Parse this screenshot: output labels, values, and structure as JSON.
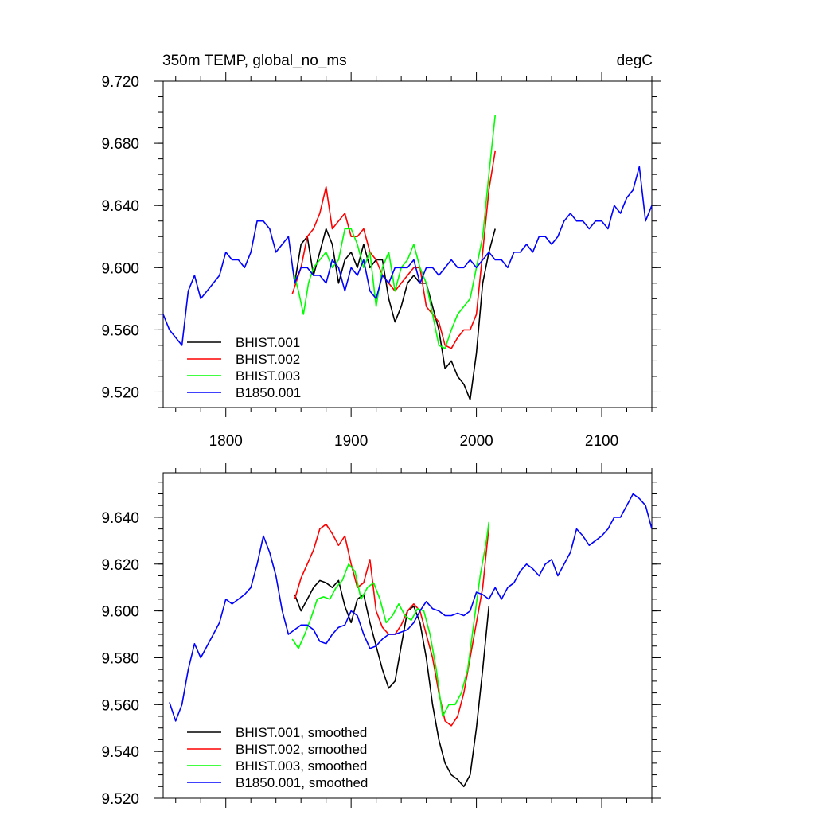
{
  "chart_data": [
    {
      "type": "line",
      "title": "350m TEMP, global_no_ms",
      "units": "degC",
      "xlim": [
        1750,
        2140
      ],
      "ylim": [
        9.51,
        9.72
      ],
      "x_ticks": [
        1800,
        1900,
        2000,
        2100
      ],
      "x_tick_labels": [
        "1800",
        "1900",
        "2000",
        "2100"
      ],
      "y_ticks": [
        9.52,
        9.56,
        9.6,
        9.64,
        9.68,
        9.72
      ],
      "y_tick_labels": [
        "9.520",
        "9.560",
        "9.600",
        "9.640",
        "9.680",
        "9.720"
      ],
      "grid": false,
      "legend_position": "bottom-left",
      "series": [
        {
          "name": "BHIST.001",
          "color": "#000000",
          "x": [
            1855,
            1860,
            1865,
            1870,
            1875,
            1880,
            1885,
            1890,
            1895,
            1900,
            1905,
            1910,
            1915,
            1920,
            1925,
            1930,
            1935,
            1940,
            1945,
            1950,
            1955,
            1960,
            1965,
            1970,
            1975,
            1980,
            1985,
            1990,
            1995,
            2000,
            2005,
            2010,
            2015
          ],
          "y": [
            9.59,
            9.615,
            9.62,
            9.595,
            9.61,
            9.625,
            9.615,
            9.59,
            9.605,
            9.61,
            9.6,
            9.615,
            9.6,
            9.605,
            9.605,
            9.58,
            9.565,
            9.575,
            9.59,
            9.595,
            9.59,
            9.59,
            9.575,
            9.56,
            9.535,
            9.54,
            9.53,
            9.525,
            9.515,
            9.545,
            9.59,
            9.61,
            9.625
          ]
        },
        {
          "name": "BHIST.002",
          "color": "#ff0000",
          "x": [
            1853,
            1860,
            1865,
            1870,
            1875,
            1880,
            1885,
            1890,
            1895,
            1900,
            1905,
            1910,
            1915,
            1920,
            1925,
            1930,
            1935,
            1940,
            1945,
            1950,
            1955,
            1960,
            1965,
            1970,
            1975,
            1980,
            1985,
            1990,
            1995,
            2000,
            2005,
            2010,
            2015
          ],
          "y": [
            9.583,
            9.6,
            9.62,
            9.625,
            9.635,
            9.652,
            9.625,
            9.63,
            9.635,
            9.62,
            9.62,
            9.625,
            9.61,
            9.605,
            9.595,
            9.59,
            9.585,
            9.59,
            9.595,
            9.6,
            9.6,
            9.575,
            9.57,
            9.565,
            9.55,
            9.548,
            9.555,
            9.56,
            9.56,
            9.57,
            9.61,
            9.65,
            9.675
          ]
        },
        {
          "name": "BHIST.003",
          "color": "#00ff00",
          "x": [
            1853,
            1858,
            1862,
            1866,
            1870,
            1875,
            1880,
            1885,
            1890,
            1895,
            1900,
            1905,
            1910,
            1915,
            1920,
            1925,
            1930,
            1935,
            1940,
            1945,
            1950,
            1955,
            1960,
            1965,
            1970,
            1975,
            1980,
            1985,
            1990,
            1995,
            2000,
            2005,
            2010,
            2015
          ],
          "y": [
            9.6,
            9.585,
            9.57,
            9.59,
            9.6,
            9.605,
            9.61,
            9.6,
            9.605,
            9.625,
            9.625,
            9.615,
            9.6,
            9.61,
            9.575,
            9.6,
            9.61,
            9.585,
            9.6,
            9.605,
            9.615,
            9.6,
            9.59,
            9.57,
            9.55,
            9.548,
            9.56,
            9.57,
            9.575,
            9.58,
            9.6,
            9.62,
            9.66,
            9.698
          ]
        },
        {
          "name": "B1850.001",
          "color": "#0000ff",
          "x": [
            1750,
            1755,
            1760,
            1765,
            1770,
            1775,
            1780,
            1785,
            1790,
            1795,
            1800,
            1805,
            1810,
            1815,
            1820,
            1825,
            1830,
            1835,
            1840,
            1845,
            1850,
            1855,
            1860,
            1865,
            1870,
            1875,
            1880,
            1885,
            1890,
            1895,
            1900,
            1905,
            1910,
            1915,
            1920,
            1925,
            1930,
            1935,
            1940,
            1945,
            1950,
            1955,
            1960,
            1965,
            1970,
            1975,
            1980,
            1985,
            1990,
            1995,
            2000,
            2005,
            2010,
            2015,
            2020,
            2025,
            2030,
            2035,
            2040,
            2045,
            2050,
            2055,
            2060,
            2065,
            2070,
            2075,
            2080,
            2085,
            2090,
            2095,
            2100,
            2105,
            2110,
            2115,
            2120,
            2125,
            2130,
            2135,
            2140
          ],
          "y": [
            9.57,
            9.56,
            9.555,
            9.55,
            9.585,
            9.595,
            9.58,
            9.585,
            9.59,
            9.595,
            9.61,
            9.605,
            9.605,
            9.6,
            9.61,
            9.63,
            9.63,
            9.625,
            9.61,
            9.615,
            9.62,
            9.59,
            9.6,
            9.6,
            9.595,
            9.595,
            9.59,
            9.605,
            9.6,
            9.585,
            9.6,
            9.595,
            9.605,
            9.585,
            9.58,
            9.595,
            9.59,
            9.6,
            9.6,
            9.6,
            9.605,
            9.59,
            9.6,
            9.6,
            9.595,
            9.6,
            9.605,
            9.6,
            9.6,
            9.605,
            9.6,
            9.605,
            9.61,
            9.605,
            9.605,
            9.6,
            9.61,
            9.61,
            9.615,
            9.61,
            9.62,
            9.62,
            9.615,
            9.62,
            9.63,
            9.635,
            9.63,
            9.63,
            9.625,
            9.63,
            9.63,
            9.625,
            9.64,
            9.635,
            9.645,
            9.65,
            9.665,
            9.63,
            9.64
          ]
        }
      ]
    },
    {
      "type": "line",
      "xlim": [
        1750,
        2140
      ],
      "ylim": [
        9.52,
        9.659
      ],
      "x_ticks": [
        1800,
        1900,
        2000,
        2100
      ],
      "y_ticks": [
        9.52,
        9.54,
        9.56,
        9.58,
        9.6,
        9.62,
        9.64
      ],
      "y_tick_labels": [
        "9.520",
        "9.540",
        "9.560",
        "9.580",
        "9.600",
        "9.620",
        "9.640"
      ],
      "grid": false,
      "legend_position": "bottom-left",
      "series": [
        {
          "name": "BHIST.001, smoothed",
          "color": "#000000",
          "x": [
            1855,
            1860,
            1865,
            1870,
            1875,
            1880,
            1885,
            1890,
            1895,
            1900,
            1905,
            1910,
            1915,
            1920,
            1925,
            1930,
            1935,
            1940,
            1945,
            1950,
            1955,
            1960,
            1965,
            1970,
            1975,
            1980,
            1985,
            1990,
            1995,
            2000,
            2005,
            2010
          ],
          "y": [
            9.607,
            9.6,
            9.605,
            9.61,
            9.613,
            9.612,
            9.61,
            9.613,
            9.602,
            9.595,
            9.605,
            9.607,
            9.595,
            9.585,
            9.575,
            9.567,
            9.57,
            9.585,
            9.6,
            9.602,
            9.595,
            9.58,
            9.56,
            9.545,
            9.535,
            9.53,
            9.528,
            9.525,
            9.53,
            9.55,
            9.575,
            9.602
          ]
        },
        {
          "name": "BHIST.002, smoothed",
          "color": "#ff0000",
          "x": [
            1855,
            1860,
            1865,
            1870,
            1875,
            1880,
            1885,
            1890,
            1895,
            1900,
            1905,
            1910,
            1915,
            1920,
            1925,
            1930,
            1935,
            1940,
            1945,
            1950,
            1955,
            1960,
            1965,
            1970,
            1975,
            1980,
            1985,
            1990,
            1995,
            2000,
            2005,
            2010
          ],
          "y": [
            9.605,
            9.614,
            9.62,
            9.626,
            9.635,
            9.637,
            9.633,
            9.628,
            9.632,
            9.62,
            9.61,
            9.612,
            9.622,
            9.6,
            9.593,
            9.59,
            9.59,
            9.594,
            9.6,
            9.603,
            9.6,
            9.59,
            9.58,
            9.565,
            9.553,
            9.551,
            9.555,
            9.565,
            9.58,
            9.595,
            9.61,
            9.636
          ]
        },
        {
          "name": "BHIST.003, smoothed",
          "color": "#00ff00",
          "x": [
            1853,
            1858,
            1863,
            1868,
            1873,
            1878,
            1883,
            1888,
            1893,
            1898,
            1903,
            1908,
            1913,
            1918,
            1923,
            1928,
            1933,
            1938,
            1943,
            1948,
            1953,
            1958,
            1963,
            1968,
            1973,
            1978,
            1983,
            1988,
            1993,
            1998,
            2003,
            2008,
            2010
          ],
          "y": [
            9.588,
            9.584,
            9.59,
            9.597,
            9.605,
            9.606,
            9.605,
            9.61,
            9.613,
            9.62,
            9.617,
            9.605,
            9.61,
            9.612,
            9.605,
            9.595,
            9.598,
            9.603,
            9.598,
            9.596,
            9.601,
            9.6,
            9.59,
            9.575,
            9.555,
            9.56,
            9.56,
            9.565,
            9.575,
            9.595,
            9.615,
            9.63,
            9.638
          ]
        },
        {
          "name": "B1850.001, smoothed",
          "color": "#0000ff",
          "x": [
            1755,
            1760,
            1765,
            1770,
            1775,
            1780,
            1785,
            1790,
            1795,
            1800,
            1805,
            1810,
            1815,
            1820,
            1825,
            1830,
            1835,
            1840,
            1845,
            1850,
            1855,
            1860,
            1865,
            1870,
            1875,
            1880,
            1885,
            1890,
            1895,
            1900,
            1905,
            1910,
            1915,
            1920,
            1925,
            1930,
            1935,
            1940,
            1945,
            1950,
            1955,
            1960,
            1965,
            1970,
            1975,
            1980,
            1985,
            1990,
            1995,
            2000,
            2005,
            2010,
            2015,
            2020,
            2025,
            2030,
            2035,
            2040,
            2045,
            2050,
            2055,
            2060,
            2065,
            2070,
            2075,
            2080,
            2085,
            2090,
            2095,
            2100,
            2105,
            2110,
            2115,
            2120,
            2125,
            2130,
            2135,
            2140
          ],
          "y": [
            9.561,
            9.553,
            9.56,
            9.575,
            9.586,
            9.58,
            9.585,
            9.59,
            9.595,
            9.605,
            9.603,
            9.605,
            9.607,
            9.61,
            9.62,
            9.632,
            9.625,
            9.615,
            9.6,
            9.59,
            9.592,
            9.594,
            9.594,
            9.592,
            9.587,
            9.586,
            9.59,
            9.593,
            9.594,
            9.6,
            9.598,
            9.59,
            9.584,
            9.585,
            9.588,
            9.59,
            9.59,
            9.591,
            9.592,
            9.595,
            9.6,
            9.604,
            9.601,
            9.6,
            9.598,
            9.598,
            9.599,
            9.598,
            9.6,
            9.608,
            9.607,
            9.605,
            9.61,
            9.605,
            9.61,
            9.612,
            9.617,
            9.62,
            9.618,
            9.615,
            9.62,
            9.622,
            9.615,
            9.62,
            9.625,
            9.635,
            9.632,
            9.628,
            9.63,
            9.632,
            9.635,
            9.64,
            9.64,
            9.645,
            9.65,
            9.648,
            9.645,
            9.635
          ]
        }
      ]
    }
  ]
}
